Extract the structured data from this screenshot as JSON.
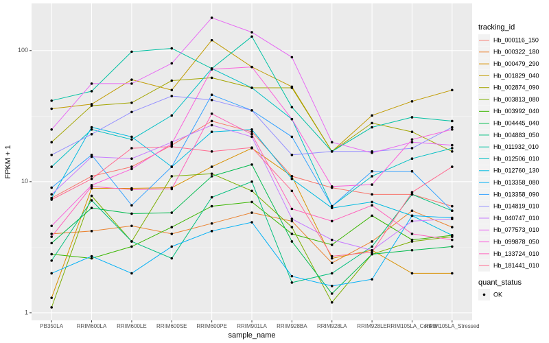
{
  "chart_data": {
    "type": "line",
    "x_label": "sample_name",
    "y_label": "FPKM + 1",
    "legend_title": "tracking_id",
    "status_title": "quant_status",
    "status_label": "OK",
    "log_scale": true,
    "grid": true,
    "categories": [
      "PB350LA",
      "RRIM600LA",
      "RRIM600LE",
      "RRIM600SE",
      "RRIM600PE",
      "RRIM901LA",
      "RRIM928BA",
      "RRIM928LA",
      "RRIM928LE",
      "RRIM105LA_Control",
      "RRIM105LA_Stressed"
    ],
    "ylim": [
      0.875,
      229
    ],
    "yticks": [
      1,
      10,
      100
    ],
    "series": [
      {
        "name": "Hb_000116_150",
        "color": "#F8766D",
        "values": [
          7.5,
          11,
          13,
          19,
          29,
          24,
          11,
          9,
          8,
          8,
          6.5
        ]
      },
      {
        "name": "Hb_000322_180",
        "color": "#EA8331",
        "values": [
          4,
          4.2,
          4.6,
          4,
          4.8,
          5.8,
          5,
          2.4,
          3.5,
          6,
          4.5
        ]
      },
      {
        "name": "Hb_000479_290",
        "color": "#D89000",
        "values": [
          1.3,
          8.9,
          8.9,
          9,
          13,
          18,
          11,
          2.6,
          3,
          2,
          2
        ]
      },
      {
        "name": "Hb_001829_040",
        "color": "#C09B00",
        "values": [
          36,
          39,
          60,
          50,
          120,
          75,
          53,
          17,
          32,
          41,
          50
        ]
      },
      {
        "name": "Hb_002874_090",
        "color": "#A3A500",
        "values": [
          20,
          38,
          40,
          59,
          62,
          52,
          52,
          17,
          28,
          24,
          17
        ]
      },
      {
        "name": "Hb_003813_080",
        "color": "#7CAE00",
        "values": [
          1.1,
          7.8,
          3.5,
          11,
          11.5,
          8.5,
          4.5,
          1.2,
          2.8,
          3.5,
          3.8
        ]
      },
      {
        "name": "Hb_003992_040",
        "color": "#39B600",
        "values": [
          2.8,
          2.6,
          3.2,
          4.5,
          6.5,
          7,
          4,
          3.3,
          5.5,
          3.6,
          3.9
        ]
      },
      {
        "name": "Hb_004445_040",
        "color": "#00BB4E",
        "values": [
          3.4,
          6.3,
          5.7,
          5.8,
          11,
          13.5,
          3.5,
          1.4,
          2.8,
          3,
          3.2
        ]
      },
      {
        "name": "Hb_004883_050",
        "color": "#00BF7D",
        "values": [
          2.5,
          7.2,
          3.5,
          2.6,
          7.6,
          10,
          1.7,
          2,
          3.2,
          8,
          6
        ]
      },
      {
        "name": "Hb_011932_010",
        "color": "#00C1A3",
        "values": [
          41.5,
          49,
          98,
          104,
          73,
          128,
          37,
          17,
          26,
          31,
          29
        ]
      },
      {
        "name": "Hb_012506_010",
        "color": "#00BFC4",
        "values": [
          13,
          25,
          21,
          32,
          73,
          52,
          30,
          6.5,
          11,
          15,
          18
        ]
      },
      {
        "name": "Hb_012760_130",
        "color": "#00BAE0",
        "values": [
          7.5,
          26,
          22,
          13,
          24,
          25,
          10.5,
          6.3,
          7,
          5.5,
          3.9
        ]
      },
      {
        "name": "Hb_013358_080",
        "color": "#00B0F6",
        "values": [
          2,
          2.7,
          2,
          3.2,
          4.2,
          4.9,
          1.9,
          1.6,
          1.8,
          5.5,
          5.3
        ]
      },
      {
        "name": "Hb_013358_090",
        "color": "#35A2FF",
        "values": [
          9,
          16,
          6.6,
          13,
          46,
          35,
          22,
          6.5,
          12,
          12,
          6
        ]
      },
      {
        "name": "Hb_014819_010",
        "color": "#9590FF",
        "values": [
          16,
          23,
          34,
          45,
          42,
          35,
          16,
          17,
          17,
          18,
          26
        ]
      },
      {
        "name": "Hb_040747_010",
        "color": "#C77CFF",
        "values": [
          8,
          15.5,
          15,
          20,
          27,
          22,
          5.2,
          3.6,
          3,
          5,
          5.2
        ]
      },
      {
        "name": "Hb_077573_010",
        "color": "#E76BF3",
        "values": [
          25,
          56,
          56,
          80,
          178,
          138,
          89,
          20,
          16.6,
          20,
          19
        ]
      },
      {
        "name": "Hb_099878_050",
        "color": "#FA62DB",
        "values": [
          4.6,
          9.4,
          12.5,
          19.5,
          72,
          75,
          30,
          9.2,
          9.5,
          21,
          25
        ]
      },
      {
        "name": "Hb_133724_010",
        "color": "#FF62BC",
        "values": [
          3.8,
          9.2,
          8.7,
          8.8,
          33,
          23,
          6.2,
          5,
          6.6,
          4,
          3.6
        ]
      },
      {
        "name": "Hb_181441_010",
        "color": "#FF6C91",
        "values": [
          7.3,
          10.5,
          18,
          18.5,
          17,
          18.2,
          8.5,
          2.7,
          2.9,
          8.3,
          13
        ]
      }
    ]
  }
}
